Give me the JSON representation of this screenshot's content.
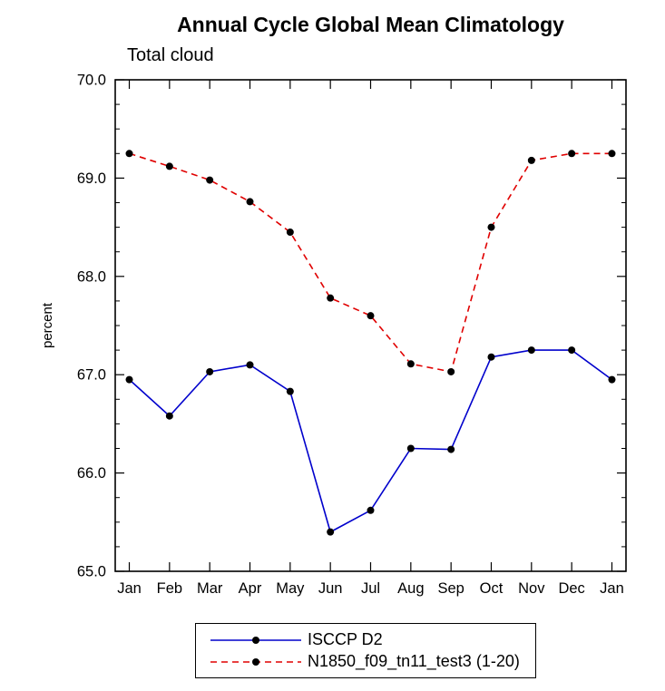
{
  "title": "Annual Cycle Global Mean Climatology",
  "subtitle": "Total cloud",
  "chart_data": {
    "type": "line",
    "categories": [
      "Jan",
      "Feb",
      "Mar",
      "Apr",
      "May",
      "Jun",
      "Jul",
      "Aug",
      "Sep",
      "Oct",
      "Nov",
      "Dec",
      "Jan"
    ],
    "series": [
      {
        "name": "ISCCP D2",
        "color": "#0000cc",
        "style": "solid",
        "values": [
          66.95,
          66.58,
          67.03,
          67.1,
          66.83,
          65.4,
          65.62,
          66.25,
          66.24,
          67.18,
          67.25,
          67.25,
          66.95
        ]
      },
      {
        "name": "N1850_f09_tn11_test3 (1-20)",
        "color": "#e00000",
        "style": "dashed",
        "values": [
          69.25,
          69.12,
          68.98,
          68.76,
          68.45,
          67.78,
          67.6,
          67.11,
          67.03,
          68.5,
          69.18,
          69.25,
          69.25
        ]
      }
    ],
    "marker_color": "#000000",
    "ylabel": "percent",
    "ylim": [
      65.0,
      70.0
    ],
    "ytick_step": 1.0,
    "ytick_minor_step": 0.25,
    "yticks": [
      "65.0",
      "66.0",
      "67.0",
      "68.0",
      "69.0",
      "70.0"
    ],
    "legend_position": "bottom",
    "grid": false
  }
}
